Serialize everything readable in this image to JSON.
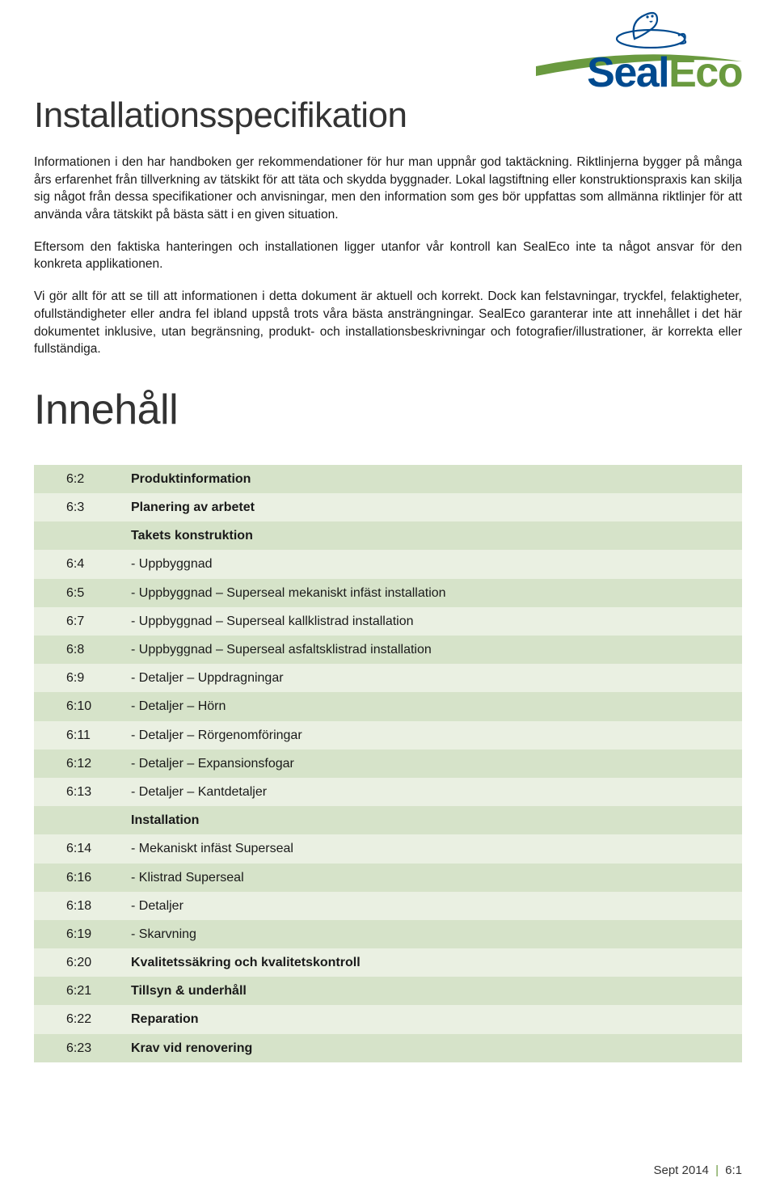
{
  "logo": {
    "brand_part1": "Seal",
    "brand_part2": "Eco",
    "colors": {
      "seal": "#004a8f",
      "eco": "#6a9a3f",
      "swoosh": "#6a9a3f",
      "seal_outline": "#004a8f"
    }
  },
  "title": "Installationsspecifikation",
  "paragraphs": [
    "Informationen i den har handboken ger rekommendationer för hur man uppnår god taktäckning. Riktlinjerna bygger på många års erfarenhet från tillverkning av tätskikt för att täta och skydda byggnader. Lokal lagstiftning eller konstruktionspraxis kan skilja sig något från dessa specifikationer och anvisningar, men den information som ges bör uppfattas som allmänna riktlinjer för att använda våra tätskikt på bästa sätt i en given situation.",
    "Eftersom den faktiska hanteringen och installationen ligger utanfor vår kontroll kan SealEco inte ta något ansvar för den konkreta applikationen.",
    "Vi gör allt för att se till att informationen i detta dokument är aktuell och korrekt. Dock kan felstavningar, tryckfel, felaktigheter, ofullständigheter eller andra fel ibland uppstå trots våra bästa ansträngningar. SealEco garanterar inte att innehållet i det här dokumentet inklusive, utan begränsning, produkt- och installationsbeskrivningar och fotografier/illustrationer, är korrekta eller fullständiga."
  ],
  "toc_title": "Innehåll",
  "toc": {
    "row_colors": {
      "odd": "#d6e3c9",
      "even": "#eaf0e2"
    },
    "rows": [
      {
        "page": "6:2",
        "label": "Produktinformation",
        "bold": true
      },
      {
        "page": "6:3",
        "label": "Planering av arbetet",
        "bold": true
      },
      {
        "page": "",
        "label": "Takets konstruktion",
        "bold": true
      },
      {
        "page": "6:4",
        "label": "- Uppbyggnad",
        "bold": false
      },
      {
        "page": "6:5",
        "label": "- Uppbyggnad – Superseal mekaniskt infäst installation",
        "bold": false
      },
      {
        "page": "6:7",
        "label": "- Uppbyggnad – Superseal kallklistrad installation",
        "bold": false
      },
      {
        "page": "6:8",
        "label": "- Uppbyggnad – Superseal asfaltsklistrad installation",
        "bold": false
      },
      {
        "page": "6:9",
        "label": "- Detaljer – Uppdragningar",
        "bold": false
      },
      {
        "page": "6:10",
        "label": "- Detaljer – Hörn",
        "bold": false
      },
      {
        "page": "6:11",
        "label": "- Detaljer – Rörgenomföringar",
        "bold": false
      },
      {
        "page": "6:12",
        "label": "- Detaljer – Expansionsfogar",
        "bold": false
      },
      {
        "page": "6:13",
        "label": "- Detaljer – Kantdetaljer",
        "bold": false
      },
      {
        "page": "",
        "label": "Installation",
        "bold": true
      },
      {
        "page": "6:14",
        "label": "- Mekaniskt infäst Superseal",
        "bold": false
      },
      {
        "page": "6:16",
        "label": "- Klistrad Superseal",
        "bold": false
      },
      {
        "page": "6:18",
        "label": "- Detaljer",
        "bold": false
      },
      {
        "page": "6:19",
        "label": "- Skarvning",
        "bold": false
      },
      {
        "page": "6:20",
        "label": "Kvalitetssäkring och kvalitetskontroll",
        "bold": true
      },
      {
        "page": "6:21",
        "label": "Tillsyn & underhåll",
        "bold": true
      },
      {
        "page": "6:22",
        "label": "Reparation",
        "bold": true
      },
      {
        "page": "6:23",
        "label": "Krav vid renovering",
        "bold": true
      }
    ]
  },
  "footer": {
    "date": "Sept 2014",
    "page": "6:1",
    "sep": "|"
  }
}
